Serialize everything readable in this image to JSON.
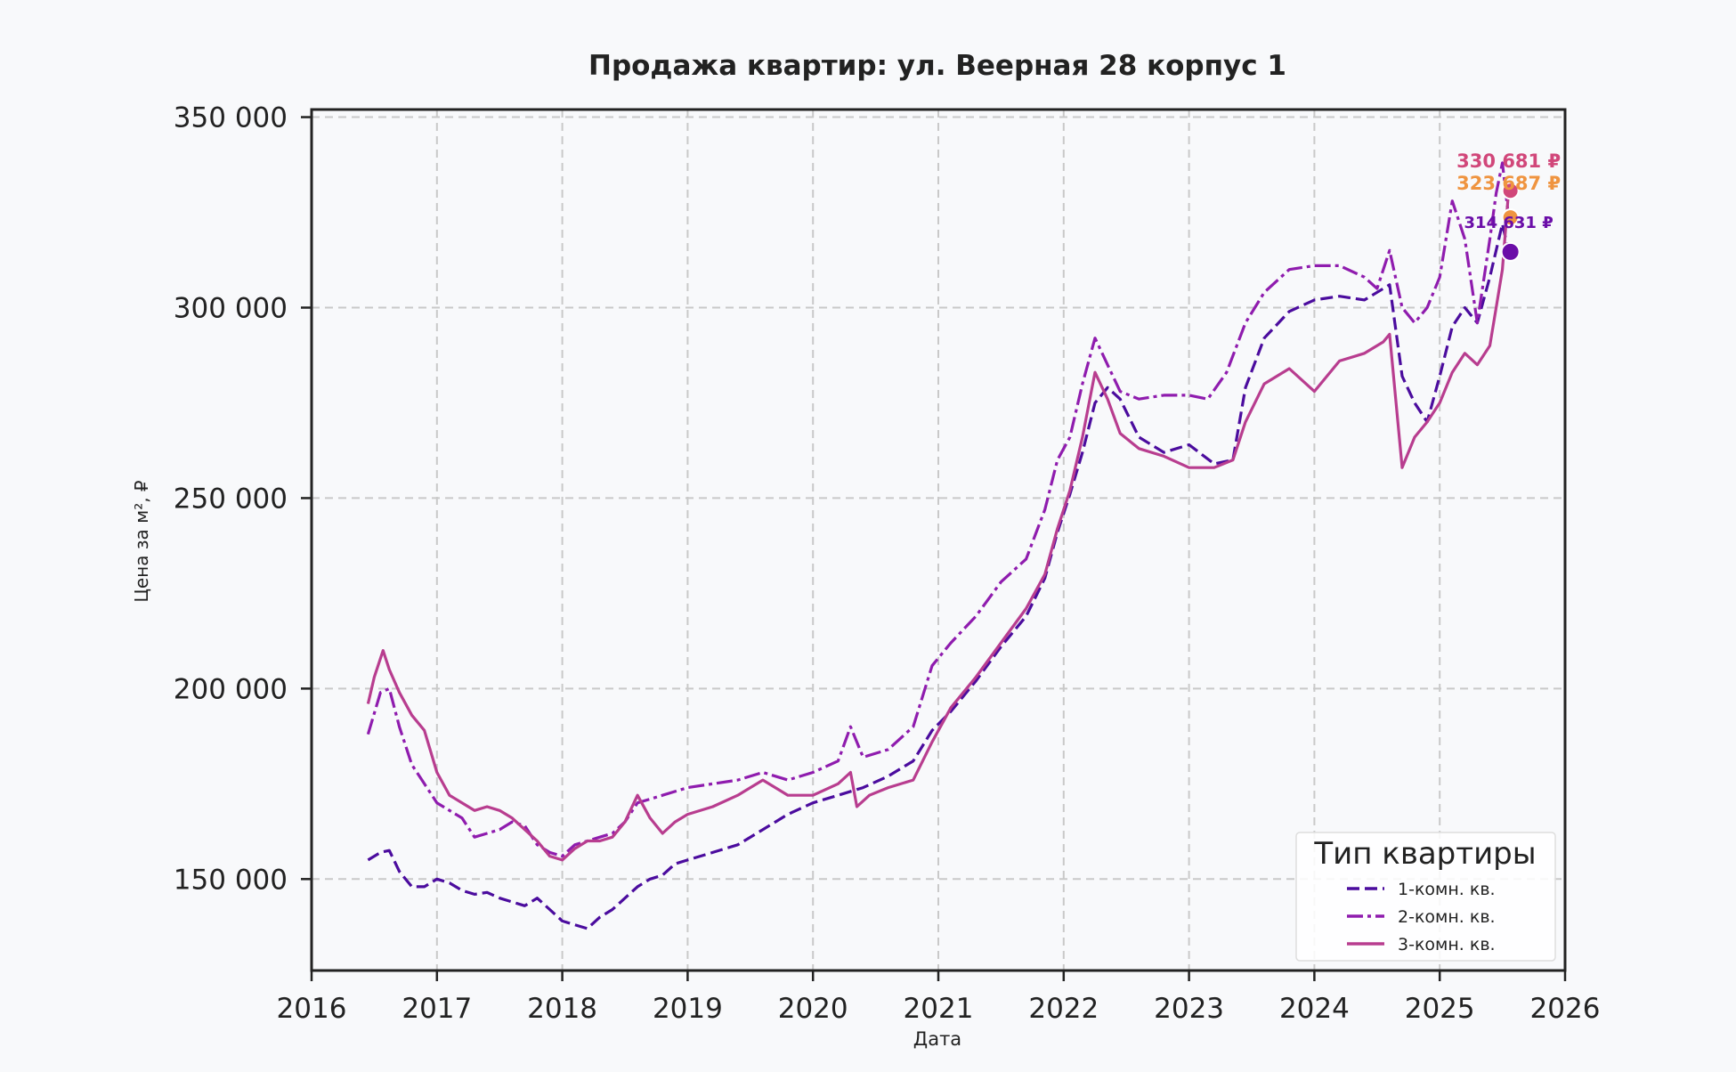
{
  "chart_data": {
    "type": "line",
    "title": "Продажа квартир: ул. Веерная 28 корпус 1",
    "xlabel": "Дата",
    "ylabel": "Цена за м², ₽",
    "xlim": [
      2016.0,
      2026.0
    ],
    "ylim": [
      126000,
      352000
    ],
    "xticks": [
      2016,
      2017,
      2018,
      2019,
      2020,
      2021,
      2022,
      2023,
      2024,
      2025,
      2026
    ],
    "xtick_labels": [
      "2016",
      "2017",
      "2018",
      "2019",
      "2020",
      "2021",
      "2022",
      "2023",
      "2024",
      "2025",
      "2026"
    ],
    "yticks": [
      150000,
      200000,
      250000,
      300000,
      350000
    ],
    "ytick_labels": [
      "150 000",
      "200 000",
      "250 000",
      "300 000",
      "350 000"
    ],
    "grid": true,
    "legend": {
      "title": "Тип квартиры",
      "placement": "lower-right",
      "entries": [
        "1-комн. кв.",
        "2-комн. кв.",
        "3-комн. кв."
      ]
    },
    "series": [
      {
        "name": "1-комн. кв.",
        "color": "#4b0c9e",
        "dash": "dashed",
        "x": [
          2016.45,
          2016.55,
          2016.62,
          2016.7,
          2016.8,
          2016.9,
          2017.0,
          2017.1,
          2017.2,
          2017.3,
          2017.4,
          2017.5,
          2017.6,
          2017.7,
          2017.8,
          2017.9,
          2018.0,
          2018.1,
          2018.2,
          2018.3,
          2018.4,
          2018.5,
          2018.6,
          2018.7,
          2018.8,
          2018.9,
          2019.0,
          2019.2,
          2019.4,
          2019.6,
          2019.8,
          2020.0,
          2020.2,
          2020.4,
          2020.6,
          2020.8,
          2020.95,
          2021.1,
          2021.3,
          2021.5,
          2021.7,
          2021.85,
          2021.95,
          2022.05,
          2022.15,
          2022.25,
          2022.35,
          2022.45,
          2022.6,
          2022.8,
          2023.0,
          2023.2,
          2023.35,
          2023.45,
          2023.6,
          2023.8,
          2024.0,
          2024.2,
          2024.4,
          2024.6,
          2024.7,
          2024.8,
          2024.9,
          2025.0,
          2025.1,
          2025.2,
          2025.3,
          2025.4,
          2025.5,
          2025.55
        ],
        "y": [
          155000,
          157000,
          157500,
          152000,
          148000,
          148000,
          150000,
          149000,
          147000,
          146000,
          146500,
          145000,
          144000,
          143000,
          145000,
          142000,
          139000,
          138000,
          137000,
          140000,
          142000,
          145000,
          148000,
          150000,
          151000,
          154000,
          155000,
          157000,
          159000,
          163000,
          167000,
          170000,
          172000,
          174000,
          177000,
          181000,
          189000,
          194000,
          202000,
          211000,
          219000,
          229000,
          241000,
          251000,
          262000,
          275000,
          279000,
          276000,
          266000,
          262000,
          264000,
          259000,
          260000,
          279000,
          292000,
          299000,
          302000,
          303000,
          302000,
          306000,
          282000,
          275000,
          270000,
          282000,
          295000,
          300000,
          296000,
          308000,
          322000,
          314631
        ]
      },
      {
        "name": "2-комн. кв.",
        "color": "#8f1cae",
        "dash": "dashdot",
        "x": [
          2016.45,
          2016.55,
          2016.62,
          2016.7,
          2016.8,
          2016.9,
          2017.0,
          2017.1,
          2017.2,
          2017.3,
          2017.4,
          2017.5,
          2017.6,
          2017.7,
          2017.8,
          2017.9,
          2018.0,
          2018.1,
          2018.2,
          2018.3,
          2018.4,
          2018.5,
          2018.6,
          2018.7,
          2018.8,
          2018.9,
          2019.0,
          2019.2,
          2019.4,
          2019.6,
          2019.8,
          2020.0,
          2020.2,
          2020.3,
          2020.4,
          2020.6,
          2020.8,
          2020.95,
          2021.1,
          2021.3,
          2021.5,
          2021.7,
          2021.85,
          2021.95,
          2022.05,
          2022.15,
          2022.25,
          2022.35,
          2022.45,
          2022.6,
          2022.8,
          2023.0,
          2023.15,
          2023.3,
          2023.45,
          2023.6,
          2023.8,
          2024.0,
          2024.2,
          2024.4,
          2024.5,
          2024.6,
          2024.7,
          2024.8,
          2024.9,
          2025.0,
          2025.1,
          2025.2,
          2025.3,
          2025.4,
          2025.45,
          2025.5,
          2025.55
        ],
        "y": [
          188000,
          199000,
          200000,
          190000,
          180000,
          175000,
          170000,
          168000,
          166000,
          161000,
          162000,
          163000,
          165000,
          164000,
          159000,
          157000,
          156000,
          159000,
          160000,
          161000,
          162000,
          165000,
          170000,
          171000,
          172000,
          173000,
          174000,
          175000,
          176000,
          178000,
          176000,
          178000,
          181000,
          190000,
          182000,
          184000,
          190000,
          206000,
          212000,
          219000,
          228000,
          234000,
          247000,
          260000,
          266000,
          280000,
          292000,
          285000,
          278000,
          276000,
          277000,
          277000,
          276000,
          283000,
          296000,
          304000,
          310000,
          311000,
          311000,
          308000,
          305000,
          315000,
          300000,
          296000,
          300000,
          308000,
          328000,
          318000,
          296000,
          318000,
          330000,
          338000,
          323687
        ]
      },
      {
        "name": "3-комн. кв.",
        "color": "#b83d8f",
        "dash": "solid",
        "x": [
          2016.45,
          2016.5,
          2016.57,
          2016.62,
          2016.7,
          2016.8,
          2016.9,
          2017.0,
          2017.1,
          2017.2,
          2017.3,
          2017.4,
          2017.5,
          2017.6,
          2017.7,
          2017.8,
          2017.9,
          2018.0,
          2018.1,
          2018.2,
          2018.3,
          2018.4,
          2018.5,
          2018.6,
          2018.7,
          2018.8,
          2018.9,
          2019.0,
          2019.2,
          2019.4,
          2019.6,
          2019.8,
          2020.0,
          2020.2,
          2020.3,
          2020.35,
          2020.45,
          2020.6,
          2020.8,
          2020.95,
          2021.1,
          2021.3,
          2021.5,
          2021.7,
          2021.85,
          2021.95,
          2022.05,
          2022.15,
          2022.25,
          2022.35,
          2022.45,
          2022.6,
          2022.8,
          2023.0,
          2023.2,
          2023.35,
          2023.45,
          2023.6,
          2023.8,
          2024.0,
          2024.2,
          2024.4,
          2024.55,
          2024.6,
          2024.7,
          2024.8,
          2024.9,
          2025.0,
          2025.1,
          2025.2,
          2025.3,
          2025.4,
          2025.45,
          2025.5,
          2025.55
        ],
        "y": [
          196000,
          203000,
          210000,
          205000,
          199000,
          193000,
          189000,
          178000,
          172000,
          170000,
          168000,
          169000,
          168000,
          166000,
          163000,
          160000,
          156000,
          155000,
          158000,
          160000,
          160000,
          161000,
          165000,
          172000,
          166000,
          162000,
          165000,
          167000,
          169000,
          172000,
          176000,
          172000,
          172000,
          175000,
          178000,
          169000,
          172000,
          174000,
          176000,
          186000,
          195000,
          203000,
          212000,
          221000,
          230000,
          242000,
          252000,
          266000,
          283000,
          276000,
          267000,
          263000,
          261000,
          258000,
          258000,
          260000,
          270000,
          280000,
          284000,
          278000,
          286000,
          288000,
          291000,
          293000,
          258000,
          266000,
          270000,
          275000,
          283000,
          288000,
          285000,
          290000,
          300000,
          310000,
          330681
        ]
      }
    ],
    "annotations": [
      {
        "series": "3-комн. кв.",
        "text": "330 681 ₽",
        "x": 2025.55,
        "y": 330681,
        "color": "#d1477a"
      },
      {
        "series": "2-комн. кв.",
        "text": "323 687 ₽",
        "x": 2025.55,
        "y": 323687,
        "color": "#ef9440"
      },
      {
        "series": "1-комн. кв.",
        "text": "314 631 ₽",
        "x": 2025.55,
        "y": 314631,
        "color": "#6b0ea8"
      }
    ]
  }
}
